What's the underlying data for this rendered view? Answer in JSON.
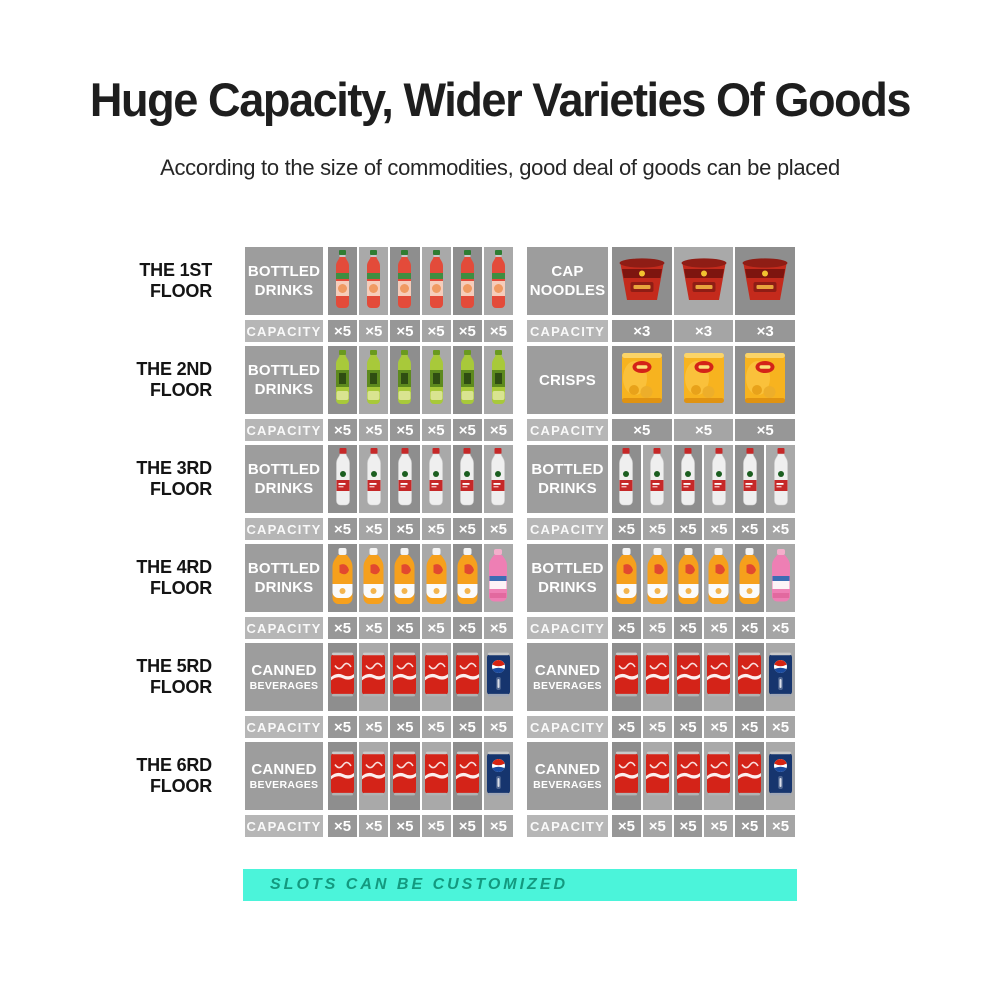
{
  "header": {
    "title": "Huge Capacity, Wider Varieties Of Goods",
    "subtitle": "According to the size of commodities,  good deal of  goods can be placed"
  },
  "capacity_label": "CAPACITY",
  "footer": {
    "slots_label": "SLOTS CAN BE CUSTOMIZED"
  },
  "colors": {
    "slots_bar_bg": "#4bf4da",
    "slots_bar_text": "#13997f",
    "category_box": "#9d9d9d",
    "capacity_box": "#b6b6b6",
    "shelf_cell_dark": "#8e8e8e",
    "shelf_cell_light": "#a9a9a9",
    "cola_red": "#d42318",
    "pepsi_blue": "#16356e",
    "crisps_yellow": "#f7b31f",
    "noodles_red": "#c42a1c"
  },
  "rows": [
    {
      "floor_line1": "THE 1ST",
      "floor_line2": "FLOOR",
      "left": {
        "category_lines": [
          {
            "text": "BOTTLED",
            "small": false
          },
          {
            "text": "DRINKS",
            "small": false
          }
        ],
        "products": [
          "red-juice-bottle",
          "red-juice-bottle",
          "red-juice-bottle",
          "red-juice-bottle",
          "red-juice-bottle",
          "red-juice-bottle"
        ],
        "capacities": [
          "×5",
          "×5",
          "×5",
          "×5",
          "×5",
          "×5"
        ]
      },
      "right": {
        "category_lines": [
          {
            "text": "CAP",
            "small": false
          },
          {
            "text": "NOODLES",
            "small": false
          }
        ],
        "products": [
          "cup-noodles",
          "cup-noodles",
          "cup-noodles"
        ],
        "capacities": [
          "×3",
          "×3",
          "×3"
        ]
      }
    },
    {
      "floor_line1": "THE 2ND",
      "floor_line2": "FLOOR",
      "left": {
        "category_lines": [
          {
            "text": "BOTTLED",
            "small": false
          },
          {
            "text": "DRINKS",
            "small": false
          }
        ],
        "products": [
          "green-tea-bottle",
          "green-tea-bottle",
          "green-tea-bottle",
          "green-tea-bottle",
          "green-tea-bottle",
          "green-tea-bottle"
        ],
        "capacities": [
          "×5",
          "×5",
          "×5",
          "×5",
          "×5",
          "×5"
        ]
      },
      "right": {
        "category_lines": [
          {
            "text": "CRISPS",
            "small": false
          }
        ],
        "products": [
          "crisps-bag",
          "crisps-bag",
          "crisps-bag"
        ],
        "capacities": [
          "×5",
          "×5",
          "×5"
        ]
      }
    },
    {
      "floor_line1": "THE 3RD",
      "floor_line2": "FLOOR",
      "left": {
        "category_lines": [
          {
            "text": "BOTTLED",
            "small": false
          },
          {
            "text": "DRINKS",
            "small": false
          }
        ],
        "products": [
          "water-bottle",
          "water-bottle",
          "water-bottle",
          "water-bottle",
          "water-bottle",
          "water-bottle"
        ],
        "capacities": [
          "×5",
          "×5",
          "×5",
          "×5",
          "×5",
          "×5"
        ]
      },
      "right": {
        "category_lines": [
          {
            "text": "BOTTLED",
            "small": false
          },
          {
            "text": "DRINKS",
            "small": false
          }
        ],
        "products": [
          "water-bottle",
          "water-bottle",
          "water-bottle",
          "water-bottle",
          "water-bottle",
          "water-bottle"
        ],
        "capacities": [
          "×5",
          "×5",
          "×5",
          "×5",
          "×5",
          "×5"
        ]
      }
    },
    {
      "floor_line1": "THE 4RD",
      "floor_line2": "FLOOR",
      "left": {
        "category_lines": [
          {
            "text": "BOTTLED",
            "small": false
          },
          {
            "text": "DRINKS",
            "small": false
          }
        ],
        "products": [
          "orange-juice-bottle",
          "orange-juice-bottle",
          "orange-juice-bottle",
          "orange-juice-bottle",
          "orange-juice-bottle",
          "pink-bottle"
        ],
        "capacities": [
          "×5",
          "×5",
          "×5",
          "×5",
          "×5",
          "×5"
        ]
      },
      "right": {
        "category_lines": [
          {
            "text": "BOTTLED",
            "small": false
          },
          {
            "text": "DRINKS",
            "small": false
          }
        ],
        "products": [
          "orange-juice-bottle",
          "orange-juice-bottle",
          "orange-juice-bottle",
          "orange-juice-bottle",
          "orange-juice-bottle",
          "pink-bottle"
        ],
        "capacities": [
          "×5",
          "×5",
          "×5",
          "×5",
          "×5",
          "×5"
        ]
      }
    },
    {
      "floor_line1": "THE 5RD",
      "floor_line2": "FLOOR",
      "left": {
        "category_lines": [
          {
            "text": "CANNED",
            "small": false
          },
          {
            "text": "BEVERAGES",
            "small": true
          }
        ],
        "products": [
          "cola-can",
          "cola-can",
          "cola-can",
          "cola-can",
          "cola-can",
          "pepsi-can"
        ],
        "capacities": [
          "×5",
          "×5",
          "×5",
          "×5",
          "×5",
          "×5"
        ]
      },
      "right": {
        "category_lines": [
          {
            "text": "CANNED",
            "small": false
          },
          {
            "text": "BEVERAGES",
            "small": true
          }
        ],
        "products": [
          "cola-can",
          "cola-can",
          "cola-can",
          "cola-can",
          "cola-can",
          "pepsi-can"
        ],
        "capacities": [
          "×5",
          "×5",
          "×5",
          "×5",
          "×5",
          "×5"
        ]
      }
    },
    {
      "floor_line1": "THE 6RD",
      "floor_line2": "FLOOR",
      "left": {
        "category_lines": [
          {
            "text": "CANNED",
            "small": false
          },
          {
            "text": "BEVERAGES",
            "small": true
          }
        ],
        "products": [
          "cola-can",
          "cola-can",
          "cola-can",
          "cola-can",
          "cola-can",
          "pepsi-can"
        ],
        "capacities": [
          "×5",
          "×5",
          "×5",
          "×5",
          "×5",
          "×5"
        ]
      },
      "right": {
        "category_lines": [
          {
            "text": "CANNED",
            "small": false
          },
          {
            "text": "BEVERAGES",
            "small": true
          }
        ],
        "products": [
          "cola-can",
          "cola-can",
          "cola-can",
          "cola-can",
          "cola-can",
          "pepsi-can"
        ],
        "capacities": [
          "×5",
          "×5",
          "×5",
          "×5",
          "×5",
          "×5"
        ]
      }
    }
  ]
}
